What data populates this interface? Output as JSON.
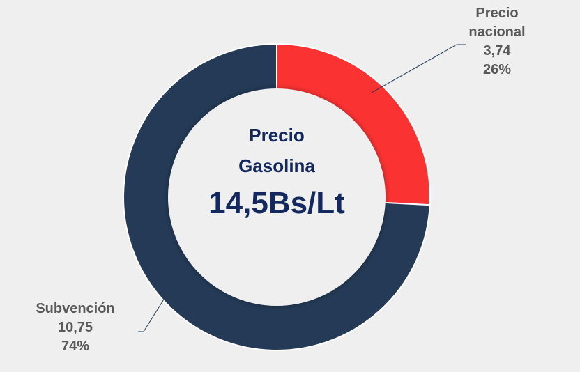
{
  "chart_data": {
    "type": "donut",
    "categories": [
      "Precio nacional",
      "Subvención"
    ],
    "values": [
      3.74,
      10.75
    ],
    "value_labels": [
      "3,74",
      "10,75"
    ],
    "percentages": [
      26,
      74
    ],
    "percent_labels": [
      "26%",
      "74%"
    ],
    "colors": [
      "#fb3232",
      "#243a56"
    ],
    "center_title": [
      "Precio",
      "Gasolina"
    ],
    "center_value": "14,5Bs/Lt"
  }
}
